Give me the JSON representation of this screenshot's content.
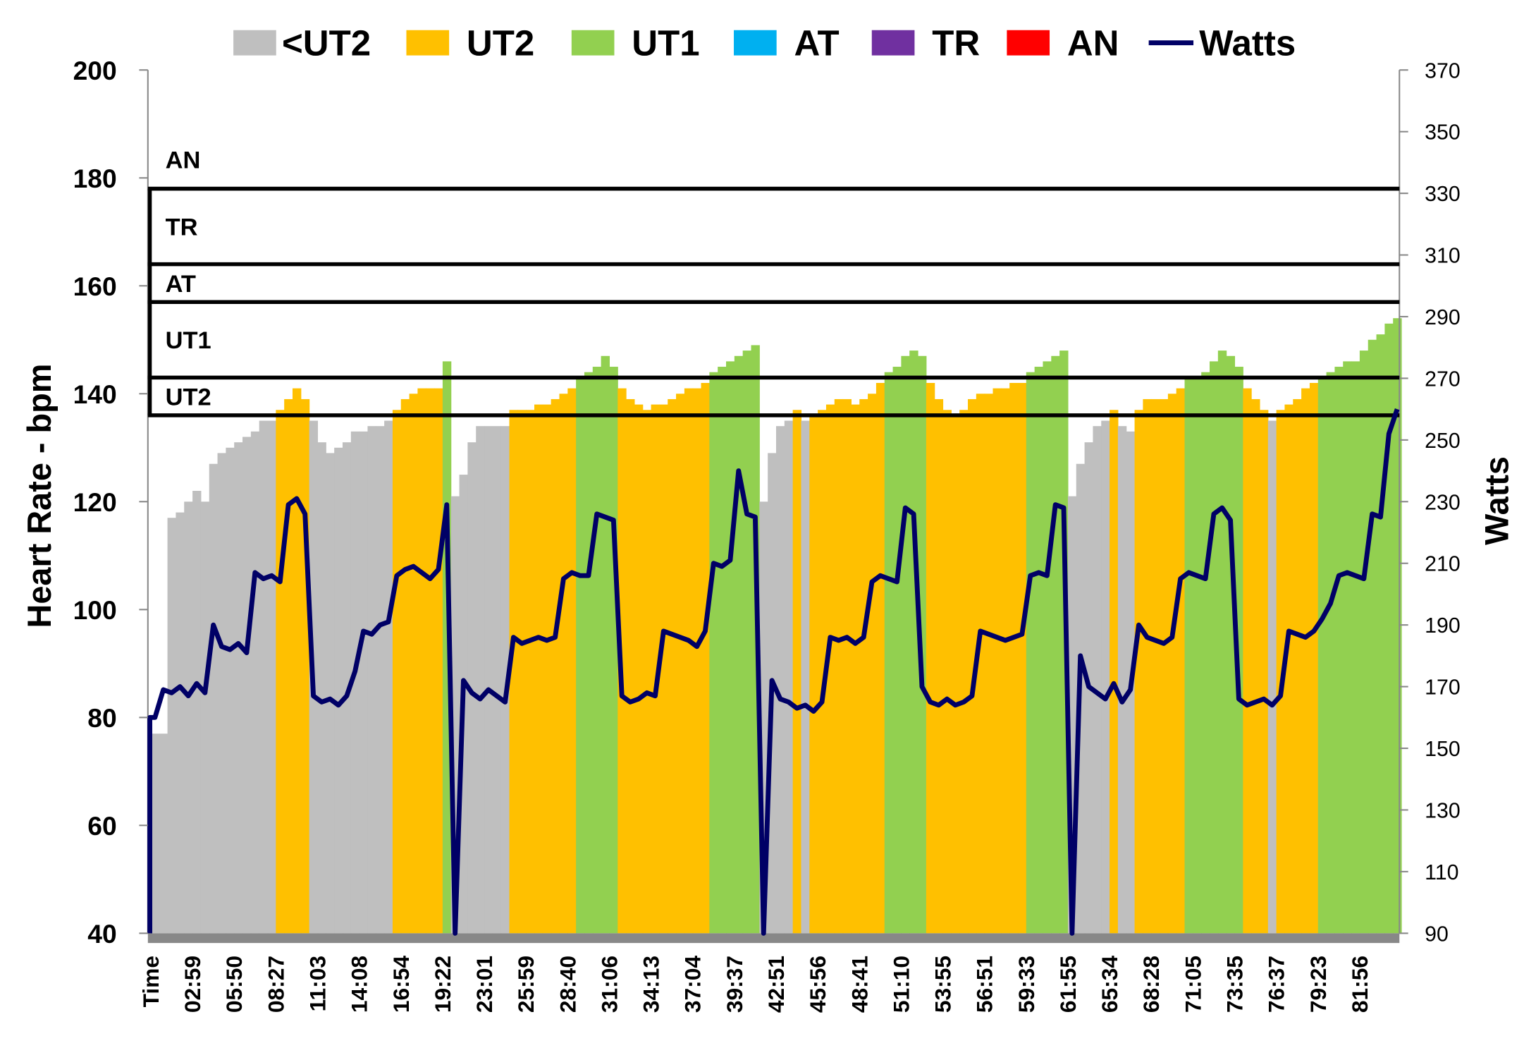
{
  "chart_data": {
    "type": "area",
    "title": "",
    "ylabel": "Heart Rate - bpm",
    "y2label": "Watts",
    "ylim": [
      40,
      200
    ],
    "y2lim": [
      90,
      370
    ],
    "yticks": [
      40,
      60,
      80,
      100,
      120,
      140,
      160,
      180,
      200
    ],
    "y2ticks": [
      90,
      110,
      130,
      150,
      170,
      190,
      210,
      230,
      250,
      270,
      290,
      310,
      330,
      350,
      370
    ],
    "xlabel": "Time",
    "xticks": [
      "Time",
      "02:59",
      "05:50",
      "08:27",
      "11:03",
      "14:08",
      "16:54",
      "19:22",
      "23:01",
      "25:59",
      "28:40",
      "31:06",
      "34:13",
      "37:04",
      "39:37",
      "42:51",
      "45:56",
      "48:41",
      "51:10",
      "53:55",
      "56:51",
      "59:33",
      "61:55",
      "65:34",
      "68:28",
      "71:05",
      "73:35",
      "76:37",
      "79:23",
      "81:56"
    ],
    "samples_per_tick": 5,
    "legend_position": "top",
    "legend": [
      {
        "label": "<UT2",
        "color": "#BFBFBF",
        "kind": "box"
      },
      {
        "label": "UT2",
        "color": "#FFC000",
        "kind": "box"
      },
      {
        "label": "UT1",
        "color": "#92D050",
        "kind": "box"
      },
      {
        "label": "AT",
        "color": "#00B0F0",
        "kind": "box"
      },
      {
        "label": "TR",
        "color": "#7030A0",
        "kind": "box"
      },
      {
        "label": "AN",
        "color": "#FF0000",
        "kind": "box"
      },
      {
        "label": "Watts",
        "color": "#000066",
        "kind": "line"
      }
    ],
    "zones": [
      {
        "label": "UT2",
        "lower_bpm": 136
      },
      {
        "label": "UT1",
        "lower_bpm": 143
      },
      {
        "label": "AT",
        "lower_bpm": 157
      },
      {
        "label": "TR",
        "lower_bpm": 164
      },
      {
        "label": "AN",
        "lower_bpm": 178
      }
    ],
    "heart_rate": [
      77,
      77,
      117,
      118,
      120,
      122,
      120,
      127,
      129,
      130,
      131,
      132,
      133,
      135,
      135,
      137,
      139,
      141,
      139,
      135,
      131,
      129,
      130,
      131,
      133,
      133,
      134,
      134,
      135,
      137,
      139,
      140,
      141,
      141,
      141,
      146,
      121,
      125,
      131,
      134,
      134,
      134,
      134,
      137,
      137,
      137,
      138,
      138,
      139,
      140,
      141,
      143,
      144,
      145,
      147,
      145,
      141,
      139,
      138,
      137,
      138,
      138,
      139,
      140,
      141,
      141,
      142,
      144,
      145,
      146,
      147,
      148,
      149,
      120,
      129,
      134,
      135,
      137,
      135,
      136,
      137,
      138,
      139,
      139,
      138,
      139,
      140,
      142,
      144,
      145,
      147,
      148,
      147,
      142,
      139,
      137,
      136,
      137,
      139,
      140,
      140,
      141,
      141,
      142,
      142,
      144,
      145,
      146,
      147,
      148,
      121,
      127,
      131,
      134,
      135,
      137,
      134,
      133,
      137,
      139,
      139,
      139,
      140,
      141,
      143,
      143,
      144,
      146,
      148,
      147,
      145,
      141,
      139,
      137,
      135,
      137,
      138,
      139,
      141,
      142,
      143,
      144,
      145,
      146,
      146,
      148,
      150,
      151,
      153,
      154
    ],
    "watts": [
      160,
      169,
      168,
      170,
      167,
      171,
      168,
      190,
      183,
      182,
      184,
      181,
      207,
      205,
      206,
      204,
      229,
      231,
      226,
      167,
      165,
      166,
      164,
      167,
      175,
      188,
      187,
      190,
      191,
      206,
      208,
      209,
      207,
      205,
      208,
      229,
      90,
      172,
      168,
      166,
      169,
      167,
      165,
      186,
      184,
      185,
      186,
      185,
      186,
      205,
      207,
      206,
      206,
      226,
      225,
      224,
      167,
      165,
      166,
      168,
      167,
      188,
      187,
      186,
      185,
      183,
      188,
      210,
      209,
      211,
      240,
      226,
      225,
      90,
      172,
      166,
      165,
      163,
      164,
      162,
      165,
      186,
      185,
      186,
      184,
      186,
      204,
      206,
      205,
      204,
      228,
      226,
      170,
      165,
      164,
      166,
      164,
      165,
      167,
      188,
      187,
      186,
      185,
      186,
      187,
      206,
      207,
      206,
      229,
      228,
      90,
      180,
      170,
      168,
      166,
      171,
      165,
      169,
      190,
      186,
      185,
      184,
      186,
      205,
      207,
      206,
      205,
      226,
      228,
      224,
      166,
      164,
      165,
      166,
      164,
      167,
      188,
      187,
      186,
      188,
      192,
      197,
      206,
      207,
      206,
      205,
      226,
      225,
      252,
      260
    ]
  }
}
